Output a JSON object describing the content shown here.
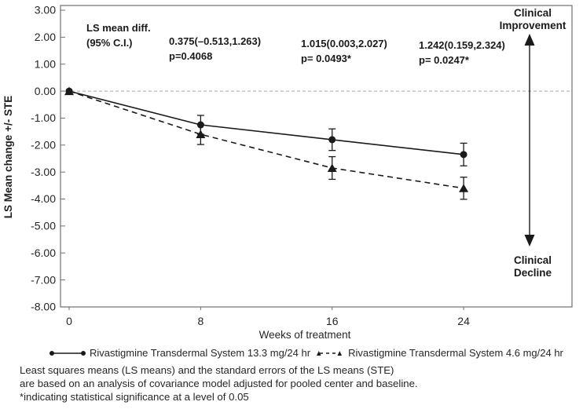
{
  "chart_data": {
    "type": "line",
    "title": "",
    "xlabel": "Weeks of treatment",
    "ylabel": "LS Mean change +/- STE",
    "x": [
      0,
      8,
      16,
      24
    ],
    "xtick_labels": [
      "0",
      "8",
      "16",
      "24"
    ],
    "ytick_values": [
      3,
      2,
      1,
      0,
      -1,
      -2,
      -3,
      -4,
      -5,
      -6,
      -7,
      -8
    ],
    "ytick_labels": [
      "3.00",
      "2.00",
      "1.00",
      "0.00",
      "-1.00",
      "-2.00",
      "-3.00",
      "-4.00",
      "-5.00",
      "-6.00",
      "-7.00",
      "-8.00"
    ],
    "ylim": [
      -8,
      3
    ],
    "xlim": [
      -0.55,
      30.6
    ],
    "grid": "off",
    "zero_reference_line": {
      "value": 0,
      "style": "dashed"
    },
    "legend_position": "bottom",
    "series": [
      {
        "name": "Rivastigmine Transdermal System 13.3 mg/24 hr",
        "marker": "circle",
        "line": "solid",
        "values": [
          0,
          -1.25,
          -1.8,
          -2.35
        ],
        "ste": [
          0,
          0.35,
          0.4,
          0.42
        ]
      },
      {
        "name": "Rivastigmine Transdermal System 4.6 mg/24 hr",
        "marker": "triangle",
        "line": "dashed",
        "values": [
          0,
          -1.6,
          -2.85,
          -3.6
        ],
        "ste": [
          0,
          0.38,
          0.42,
          0.41
        ]
      }
    ]
  },
  "annotations": {
    "header_line1": "LS mean diff.",
    "header_line2": "(95% C.I.)",
    "comparisons": [
      {
        "estimate": "0.375(–0.513,1.263)",
        "p": "p=0.4068"
      },
      {
        "estimate": "1.015(0.003,2.027)",
        "p": "p= 0.0493*"
      },
      {
        "estimate": "1.242(0.159,2.324)",
        "p": "p= 0.0247*"
      }
    ],
    "direction_top_line1": "Clinical",
    "direction_top_line2": "Improvement",
    "direction_bottom_line1": "Clinical",
    "direction_bottom_line2": "Decline"
  },
  "legend": {
    "items": [
      {
        "label": "Rivastigmine Transdermal System 13.3 mg/24 hr"
      },
      {
        "label": "Rivastigmine Transdermal System 4.6 mg/24 hr"
      }
    ]
  },
  "footnotes": [
    "Least squares means (LS means) and the standard errors of the LS means (STE)",
    "are based on an analysis of covariance model adjusted for pooled center and baseline.",
    "*indicating statistical significance at a level of 0.05"
  ],
  "colors": {
    "data": "#1a1a1a",
    "plot_border": "#707070",
    "zero_line": "#a6a6a6",
    "text": "#262626"
  }
}
